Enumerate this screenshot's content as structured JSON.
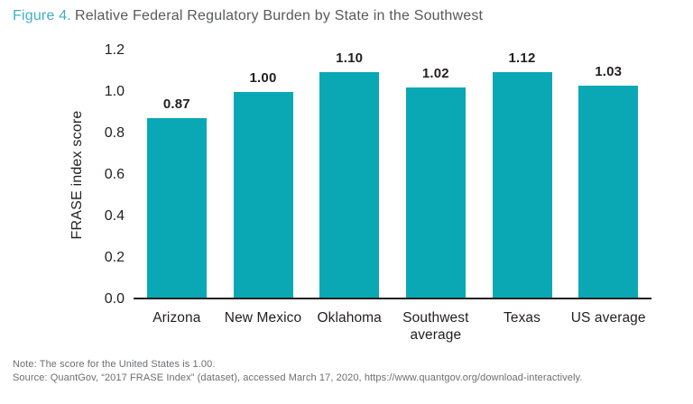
{
  "figure": {
    "label": "Figure 4.",
    "title": "Relative Federal Regulatory Burden by State in the Southwest"
  },
  "chart_data": {
    "type": "bar",
    "categories": [
      "Arizona",
      "New Mexico",
      "Oklahoma",
      "Southwest average",
      "Texas",
      "US average"
    ],
    "values": [
      0.87,
      1.0,
      1.1,
      1.02,
      1.12,
      1.03
    ],
    "value_labels": [
      "0.87",
      "1.00",
      "1.10",
      "1.02",
      "1.12",
      "1.03"
    ],
    "title": "Figure 4. Relative Federal Regulatory Burden by State in the Southwest",
    "xlabel": "",
    "ylabel": "FRASE index score",
    "ylim": [
      0,
      1.2
    ],
    "yticks": [
      "0.0",
      "0.2",
      "0.4",
      "0.6",
      "0.8",
      "1.0",
      "1.2"
    ],
    "bar_color": "#0AA8B5",
    "grid": false,
    "legend": null
  },
  "notes": {
    "note": "Note: The score for the United States is 1.00.",
    "source": "Source: QuantGov, “2017 FRASE Index” (dataset), accessed March 17, 2020, https://www.quantgov.org/download-interactively."
  },
  "colors": {
    "figure_label": "#41AFC2",
    "title_text": "#58595B",
    "axis_text": "#231F20",
    "axis_line": "#231F20",
    "footnote_text": "#6D6E71",
    "bar": "#0AA8B5"
  }
}
